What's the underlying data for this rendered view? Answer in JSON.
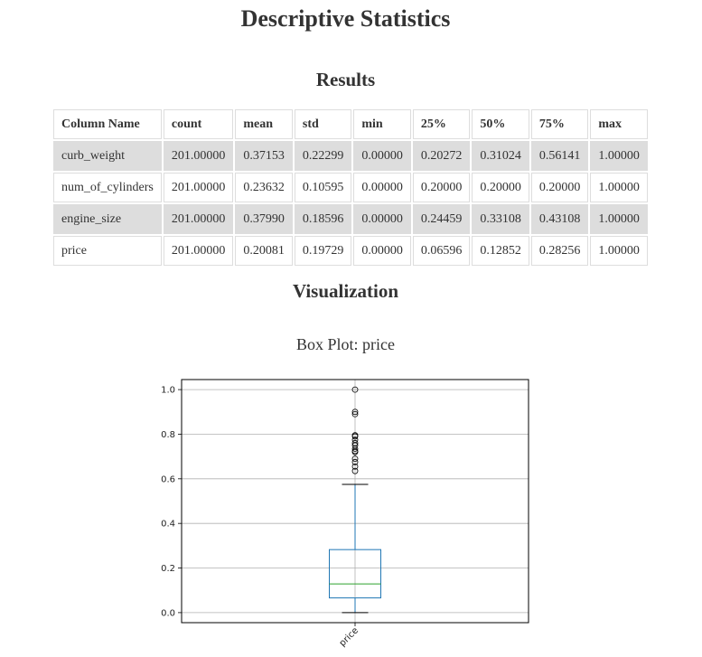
{
  "page": {
    "title": "Descriptive Statistics"
  },
  "results": {
    "title": "Results",
    "columns": [
      "Column Name",
      "count",
      "mean",
      "std",
      "min",
      "25%",
      "50%",
      "75%",
      "max"
    ],
    "rows": [
      [
        "curb_weight",
        "201.00000",
        "0.37153",
        "0.22299",
        "0.00000",
        "0.20272",
        "0.31024",
        "0.56141",
        "1.00000"
      ],
      [
        "num_of_cylinders",
        "201.00000",
        "0.23632",
        "0.10595",
        "0.00000",
        "0.20000",
        "0.20000",
        "0.20000",
        "1.00000"
      ],
      [
        "engine_size",
        "201.00000",
        "0.37990",
        "0.18596",
        "0.00000",
        "0.24459",
        "0.33108",
        "0.43108",
        "1.00000"
      ],
      [
        "price",
        "201.00000",
        "0.20081",
        "0.19729",
        "0.00000",
        "0.06596",
        "0.12852",
        "0.28256",
        "1.00000"
      ]
    ]
  },
  "visualization": {
    "title": "Visualization",
    "chart_title": "Box Plot: price"
  },
  "chart_data": {
    "type": "box",
    "title": "Box Plot: price",
    "categories": [
      "price"
    ],
    "ylim": [
      -0.045,
      1.045
    ],
    "yticks": [
      0.0,
      0.2,
      0.4,
      0.6,
      0.8,
      1.0
    ],
    "ytick_labels": [
      "0.0",
      "0.2",
      "0.4",
      "0.6",
      "0.8",
      "1.0"
    ],
    "grid": true,
    "boxes": [
      {
        "label": "price",
        "whisker_low": 0.0,
        "q1": 0.06596,
        "median": 0.12852,
        "q3": 0.28256,
        "whisker_high": 0.575,
        "outliers": [
          0.635,
          0.655,
          0.675,
          0.69,
          0.72,
          0.725,
          0.735,
          0.75,
          0.76,
          0.775,
          0.79,
          0.795,
          0.89,
          0.9,
          1.0
        ]
      }
    ],
    "colors": {
      "box": "#1f77b4",
      "median": "#2ca02c",
      "whisker": "#1f77b4",
      "cap": "#000000",
      "grid": "#b0b0b0"
    }
  }
}
